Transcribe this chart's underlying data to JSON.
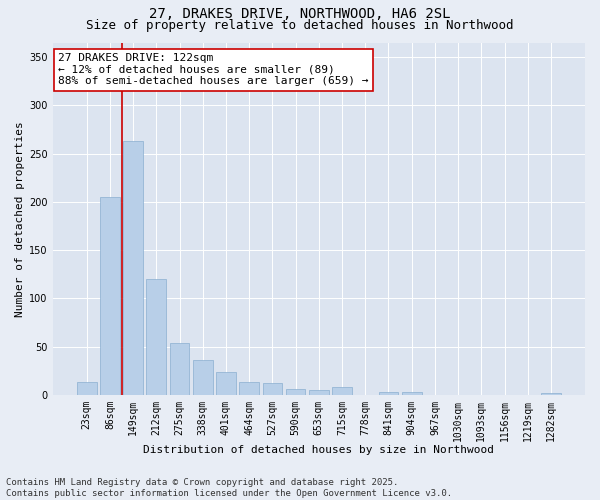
{
  "title_line1": "27, DRAKES DRIVE, NORTHWOOD, HA6 2SL",
  "title_line2": "Size of property relative to detached houses in Northwood",
  "xlabel": "Distribution of detached houses by size in Northwood",
  "ylabel": "Number of detached properties",
  "categories": [
    "23sqm",
    "86sqm",
    "149sqm",
    "212sqm",
    "275sqm",
    "338sqm",
    "401sqm",
    "464sqm",
    "527sqm",
    "590sqm",
    "653sqm",
    "715sqm",
    "778sqm",
    "841sqm",
    "904sqm",
    "967sqm",
    "1030sqm",
    "1093sqm",
    "1156sqm",
    "1219sqm",
    "1282sqm"
  ],
  "values": [
    13,
    205,
    263,
    120,
    54,
    36,
    24,
    13,
    12,
    6,
    5,
    8,
    0,
    3,
    3,
    0,
    0,
    0,
    0,
    0,
    2
  ],
  "bar_color": "#b8cfe8",
  "bar_edge_color": "#8aafd0",
  "fig_bg_color": "#e8edf5",
  "plot_bg_color": "#dce4f0",
  "grid_color": "#ffffff",
  "vline_x": 1.54,
  "vline_color": "#cc0000",
  "annotation_text": "27 DRAKES DRIVE: 122sqm\n← 12% of detached houses are smaller (89)\n88% of semi-detached houses are larger (659) →",
  "ylim": [
    0,
    365
  ],
  "yticks": [
    0,
    50,
    100,
    150,
    200,
    250,
    300,
    350
  ],
  "footnote": "Contains HM Land Registry data © Crown copyright and database right 2025.\nContains public sector information licensed under the Open Government Licence v3.0.",
  "title_fontsize": 10,
  "subtitle_fontsize": 9,
  "axis_label_fontsize": 8,
  "tick_fontsize": 7,
  "annotation_fontsize": 8,
  "footnote_fontsize": 6.5
}
